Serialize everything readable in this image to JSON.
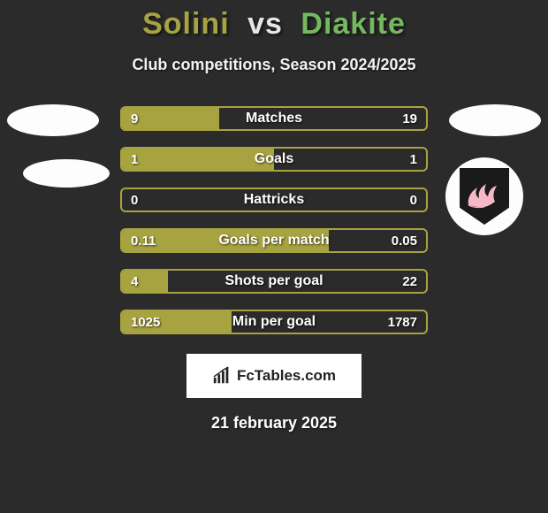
{
  "title": {
    "player1": "Solini",
    "vs": "vs",
    "player2": "Diakite",
    "player1_color": "#a7a341",
    "vs_color": "#e6e6e6",
    "player2_color": "#74b85f"
  },
  "subtitle": "Club competitions, Season 2024/2025",
  "colors": {
    "background": "#2b2b2b",
    "left_fill": "#a7a341",
    "right_fill": "#74b85f",
    "bar_border": "#a7a341",
    "text": "#ffffff"
  },
  "bars": [
    {
      "label": "Matches",
      "left_value": "9",
      "right_value": "19",
      "left_pct": 32,
      "has_right_fill": false
    },
    {
      "label": "Goals",
      "left_value": "1",
      "right_value": "1",
      "left_pct": 50,
      "has_right_fill": false
    },
    {
      "label": "Hattricks",
      "left_value": "0",
      "right_value": "0",
      "left_pct": 0,
      "has_right_fill": false
    },
    {
      "label": "Goals per match",
      "left_value": "0.11",
      "right_value": "0.05",
      "left_pct": 68,
      "has_right_fill": false
    },
    {
      "label": "Shots per goal",
      "left_value": "4",
      "right_value": "22",
      "left_pct": 15,
      "has_right_fill": false
    },
    {
      "label": "Min per goal",
      "left_value": "1025",
      "right_value": "1787",
      "left_pct": 36,
      "has_right_fill": false
    }
  ],
  "footer": {
    "brand": "FcTables.com",
    "icon_color": "#222222"
  },
  "date": "21 february 2025",
  "badge": {
    "shield_color": "#1a1a1a",
    "accent_color": "#f6b8c7"
  }
}
